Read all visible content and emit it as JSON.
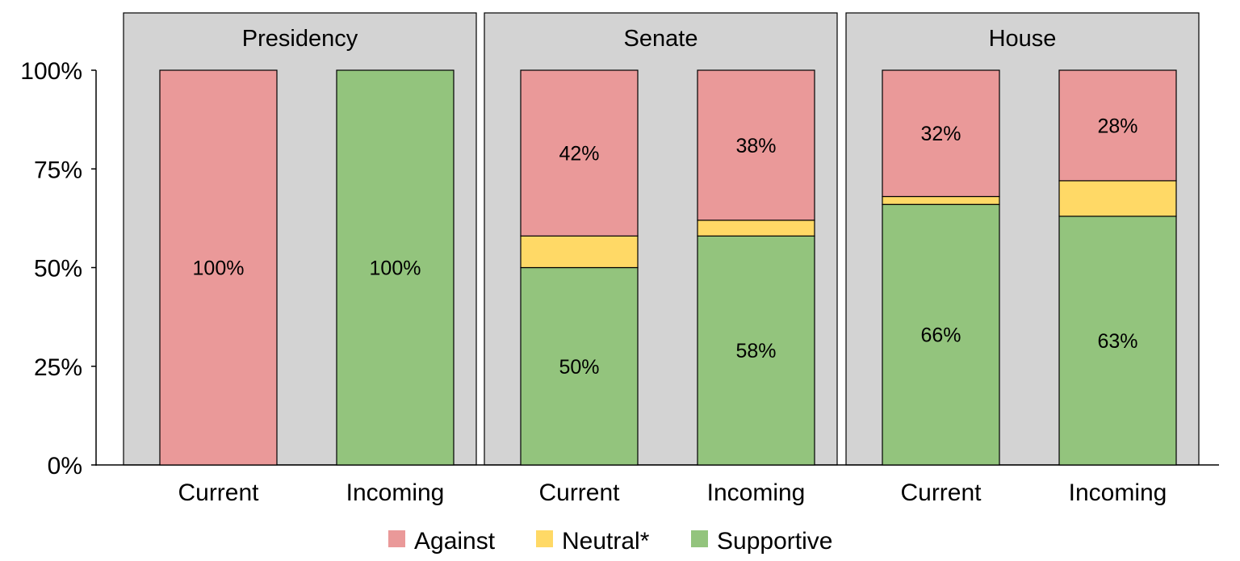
{
  "chart_data": {
    "type": "bar",
    "stacked": true,
    "faceted": true,
    "y_ticks": [
      "0%",
      "25%",
      "50%",
      "75%",
      "100%"
    ],
    "ylim": [
      0,
      100
    ],
    "categories": [
      "Current",
      "Incoming"
    ],
    "legend": {
      "position": "bottom",
      "items": [
        {
          "key": "against",
          "label": "Against"
        },
        {
          "key": "neutral",
          "label": "Neutral*"
        },
        {
          "key": "supportive",
          "label": "Supportive"
        }
      ]
    },
    "colors": {
      "against": "#ea9999",
      "neutral": "#ffd966",
      "supportive": "#93c47d",
      "panel": "#d3d3d3"
    },
    "facets": [
      {
        "title": "Presidency",
        "bars": [
          {
            "category": "Current",
            "supportive": 0,
            "neutral": 0,
            "against": 100,
            "labels": {
              "against": "100%"
            }
          },
          {
            "category": "Incoming",
            "supportive": 100,
            "neutral": 0,
            "against": 0,
            "labels": {
              "supportive": "100%"
            }
          }
        ]
      },
      {
        "title": "Senate",
        "bars": [
          {
            "category": "Current",
            "supportive": 50,
            "neutral": 8,
            "against": 42,
            "labels": {
              "supportive": "50%",
              "against": "42%"
            }
          },
          {
            "category": "Incoming",
            "supportive": 58,
            "neutral": 4,
            "against": 38,
            "labels": {
              "supportive": "58%",
              "against": "38%"
            }
          }
        ]
      },
      {
        "title": "House",
        "bars": [
          {
            "category": "Current",
            "supportive": 66,
            "neutral": 2,
            "against": 32,
            "labels": {
              "supportive": "66%",
              "against": "32%"
            }
          },
          {
            "category": "Incoming",
            "supportive": 63,
            "neutral": 9,
            "against": 28,
            "labels": {
              "supportive": "63%",
              "against": "28%"
            }
          }
        ]
      }
    ]
  }
}
